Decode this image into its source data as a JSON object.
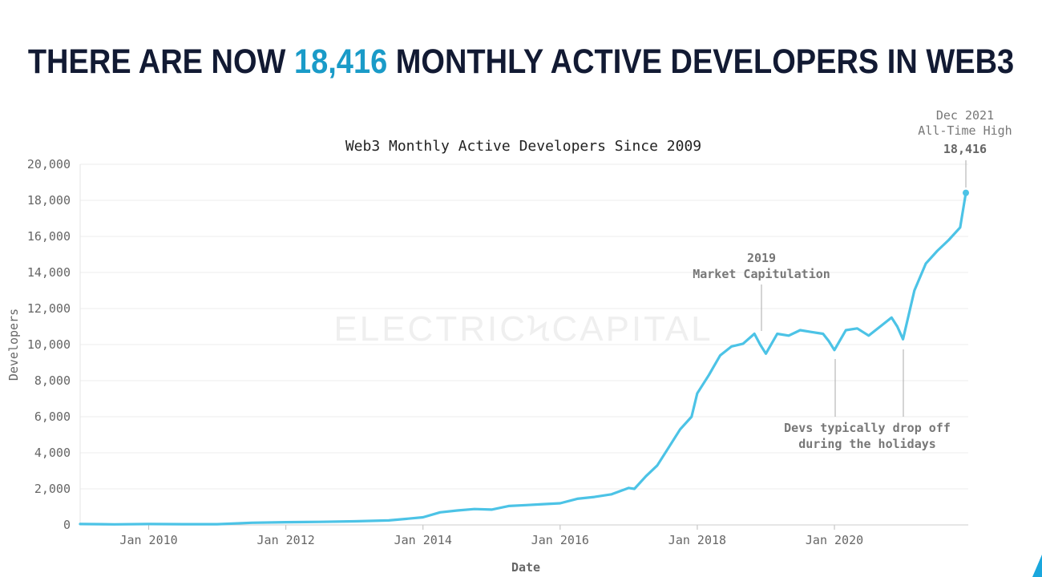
{
  "headline": {
    "prefix": "THERE ARE NOW",
    "highlight": "18,416",
    "suffix": "MONTHLY ACTIVE DEVELOPERS IN WEB3"
  },
  "watermark": "ELECTRICϞCAPITAL",
  "colors": {
    "line": "#4cc3e6",
    "headline": "#121a33",
    "highlight": "#1a9bc8",
    "annotation": "#777777",
    "grid": "#ececec",
    "watermark": "#efefef"
  },
  "chart_data": {
    "type": "line",
    "title": "Web3 Monthly Active Developers Since 2009",
    "xlabel": "Date",
    "ylabel": "Developers",
    "ylim": [
      0,
      20000
    ],
    "xlim": [
      "2009-01",
      "2021-12"
    ],
    "grid": true,
    "y_ticks": [
      "0",
      "2,000",
      "4,000",
      "6,000",
      "8,000",
      "10,000",
      "12,000",
      "14,000",
      "16,000",
      "18,000",
      "20,000"
    ],
    "x_ticks": [
      "Jan 2010",
      "Jan 2012",
      "Jan 2014",
      "Jan 2016",
      "Jan 2018",
      "Jan 2020"
    ],
    "series": [
      {
        "x": [
          "2009-01",
          "2009-07",
          "2010-01",
          "2010-07",
          "2011-01",
          "2011-07",
          "2012-01",
          "2012-07",
          "2013-01",
          "2013-07",
          "2014-01",
          "2014-04",
          "2014-07",
          "2014-10",
          "2015-01",
          "2015-04",
          "2015-07",
          "2015-10",
          "2016-01",
          "2016-04",
          "2016-07",
          "2016-10",
          "2017-01",
          "2017-02",
          "2017-04",
          "2017-06",
          "2017-08",
          "2017-10",
          "2017-12",
          "2018-01",
          "2018-03",
          "2018-05",
          "2018-07",
          "2018-09",
          "2018-11",
          "2018-12",
          "2019-01",
          "2019-03",
          "2019-05",
          "2019-07",
          "2019-09",
          "2019-11",
          "2019-12",
          "2020-01",
          "2020-03",
          "2020-05",
          "2020-07",
          "2020-09",
          "2020-11",
          "2020-12",
          "2021-01",
          "2021-03",
          "2021-05",
          "2021-07",
          "2021-09",
          "2021-11",
          "2021-12"
        ],
        "y": [
          50,
          30,
          50,
          40,
          40,
          120,
          150,
          170,
          200,
          250,
          420,
          700,
          800,
          880,
          850,
          1050,
          1100,
          1150,
          1200,
          1450,
          1550,
          1700,
          2050,
          2000,
          2700,
          3300,
          4300,
          5300,
          6000,
          7300,
          8300,
          9400,
          9900,
          10050,
          10600,
          10000,
          9500,
          10600,
          10500,
          10800,
          10700,
          10600,
          10200,
          9700,
          10800,
          10900,
          10500,
          11000,
          11500,
          11000,
          10300,
          13000,
          14500,
          15200,
          15800,
          16500,
          18416
        ]
      }
    ],
    "annotations": [
      {
        "text": [
          "Dec 2021",
          "All-Time High"
        ],
        "value": "18,416",
        "x": "2021-12",
        "y": 18416
      },
      {
        "text": [
          "2019",
          "Market Capitulation"
        ],
        "x": "2018-12",
        "y": 10000
      },
      {
        "text": [
          "Devs typically drop off",
          "during the holidays"
        ],
        "x": [
          "2020-01",
          "2021-01"
        ],
        "y": [
          9700,
          10300
        ]
      }
    ]
  }
}
